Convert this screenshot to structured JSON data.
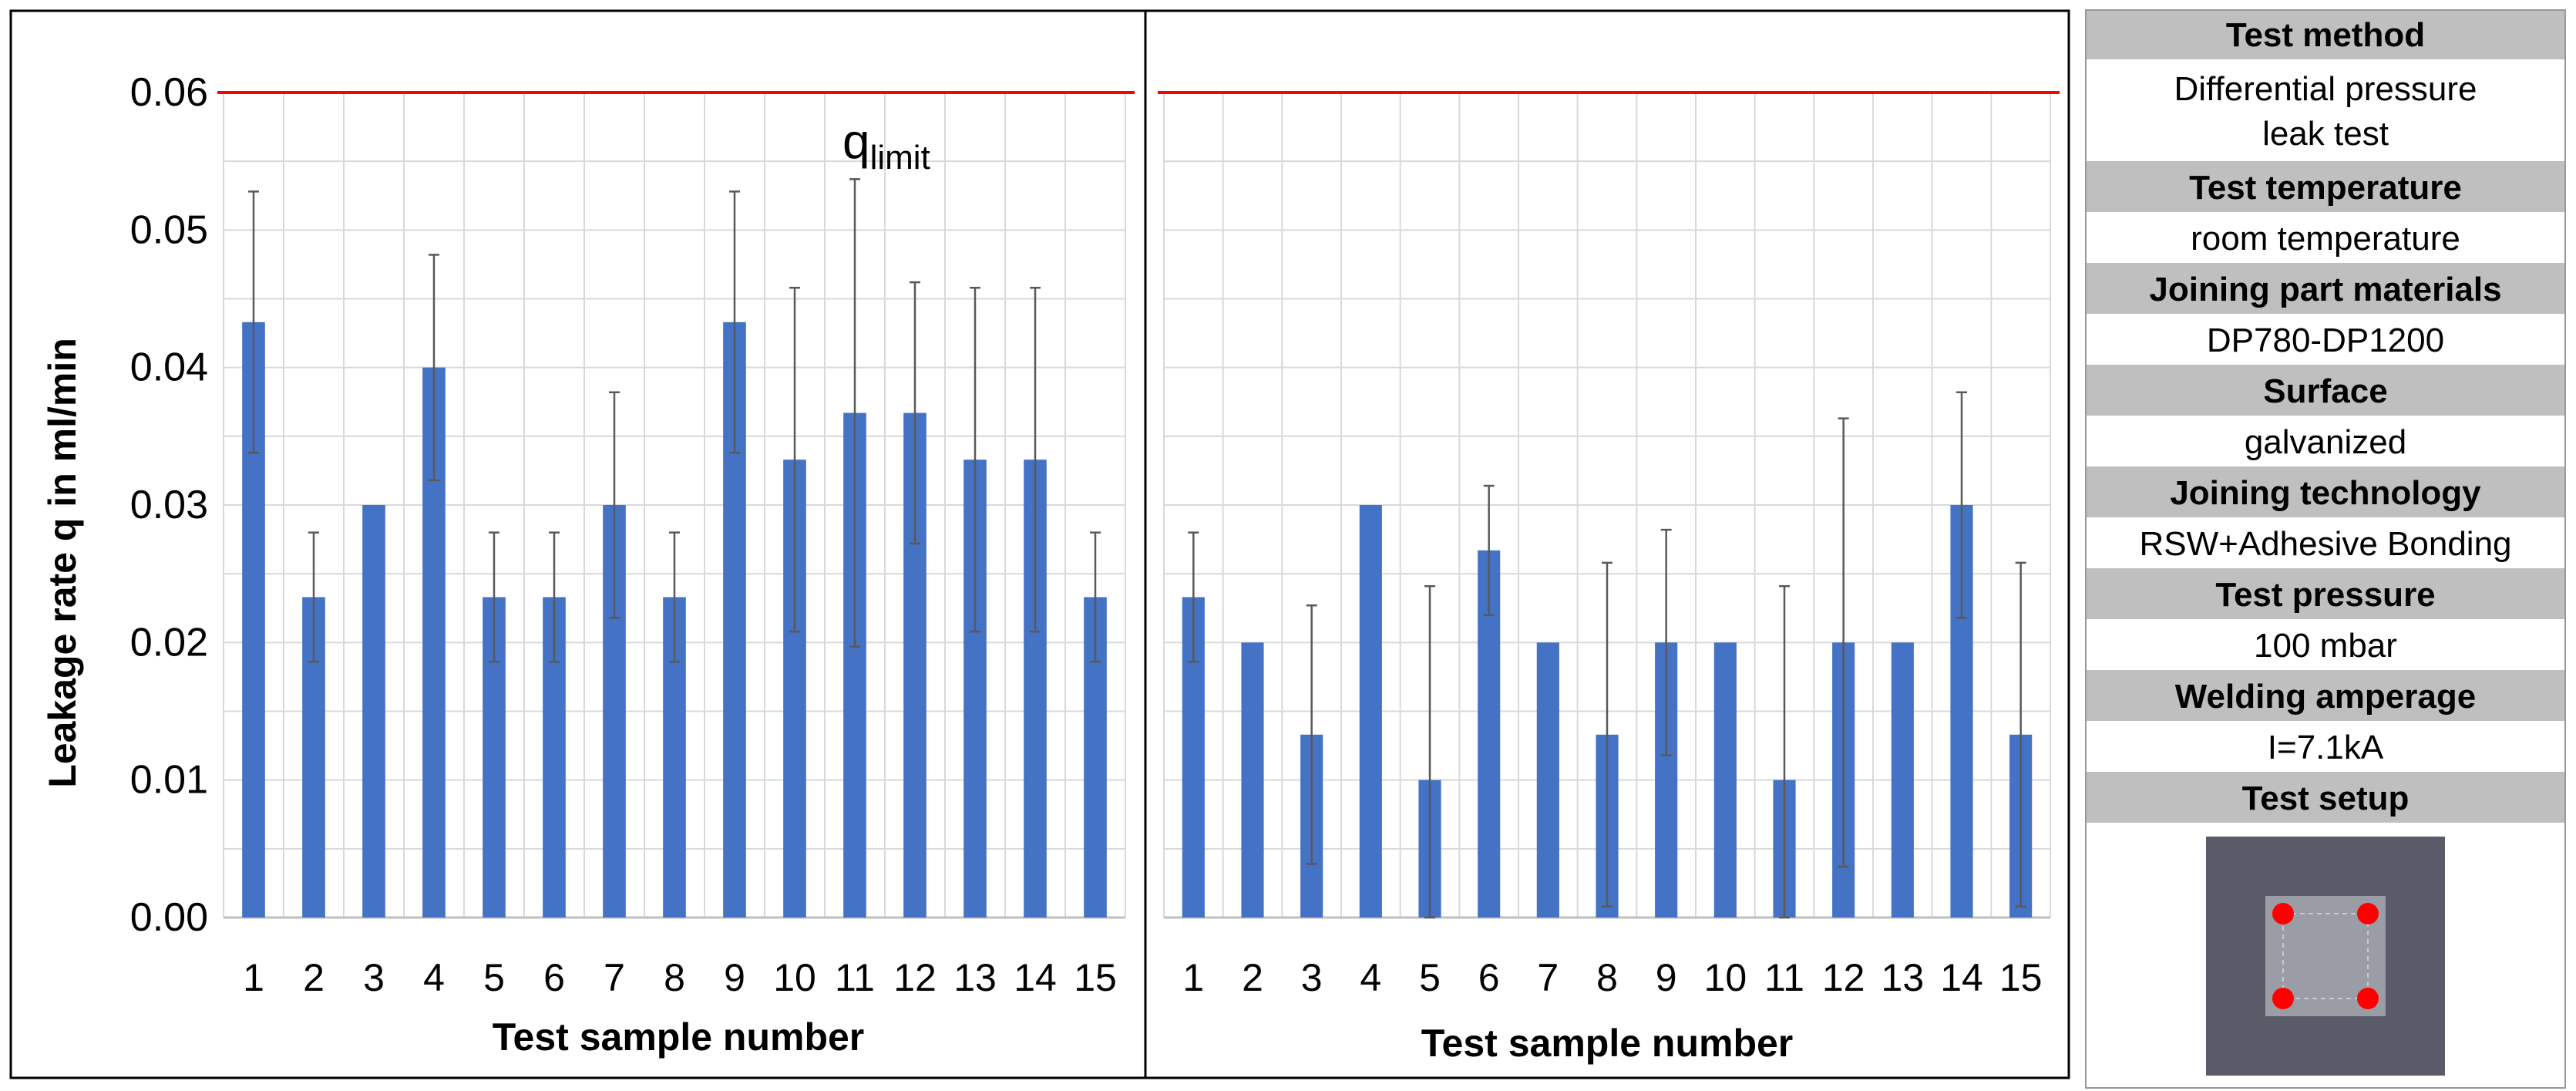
{
  "chart_data": [
    {
      "type": "bar",
      "categories": [
        "1",
        "2",
        "3",
        "4",
        "5",
        "6",
        "7",
        "8",
        "9",
        "10",
        "11",
        "12",
        "13",
        "14",
        "15"
      ],
      "values": [
        0.0433,
        0.0233,
        0.03,
        0.04,
        0.0233,
        0.0233,
        0.03,
        0.0233,
        0.0433,
        0.0333,
        0.0367,
        0.0367,
        0.0333,
        0.0333,
        0.0233
      ],
      "errors": [
        0.0095,
        0.0047,
        0.0,
        0.0082,
        0.0047,
        0.0047,
        0.0082,
        0.0047,
        0.0095,
        0.0125,
        0.017,
        0.0095,
        0.0125,
        0.0125,
        0.0047
      ],
      "ylabel": "Leakage rate q in ml/min",
      "xlabel": "Test sample number",
      "ylim": [
        0,
        0.06
      ],
      "yticks": [
        "0.00",
        "0.01",
        "0.02",
        "0.03",
        "0.04",
        "0.05",
        "0.06"
      ],
      "limit_line": {
        "value": 0.06,
        "label_main": "q",
        "label_sub": "limit",
        "color": "#ff0000"
      },
      "bar_color": "#4472c4",
      "grid": true
    },
    {
      "type": "bar",
      "categories": [
        "1",
        "2",
        "3",
        "4",
        "5",
        "6",
        "7",
        "8",
        "9",
        "10",
        "11",
        "12",
        "13",
        "14",
        "15"
      ],
      "values": [
        0.0233,
        0.02,
        0.0133,
        0.03,
        0.01,
        0.0267,
        0.02,
        0.0133,
        0.02,
        0.02,
        0.01,
        0.02,
        0.02,
        0.03,
        0.0133
      ],
      "errors": [
        0.0047,
        0.0,
        0.0094,
        0.0,
        0.0141,
        0.0047,
        0.0,
        0.0125,
        0.0082,
        0.0,
        0.0141,
        0.0163,
        0.0,
        0.0082,
        0.0125
      ],
      "xlabel": "Test sample number",
      "ylim": [
        0,
        0.06
      ],
      "limit_line": {
        "value": 0.06,
        "color": "#ff0000"
      },
      "bar_color": "#4472c4",
      "grid": true
    }
  ],
  "info_table": [
    {
      "header": "Test method",
      "value_lines": [
        "Differential pressure",
        "leak test"
      ]
    },
    {
      "header": "Test temperature",
      "value_lines": [
        "room temperature"
      ]
    },
    {
      "header": "Joining part materials",
      "value_lines": [
        "DP780-DP1200"
      ]
    },
    {
      "header": "Surface",
      "value_lines": [
        "galvanized"
      ]
    },
    {
      "header": "Joining technology",
      "value_lines": [
        "RSW+Adhesive Bonding"
      ]
    },
    {
      "header": "Test pressure",
      "value_lines": [
        "100 mbar"
      ]
    },
    {
      "header": "Welding amperage",
      "value_lines": [
        "I=7.1kA"
      ]
    },
    {
      "header": "Test setup",
      "value_lines": []
    }
  ],
  "setup_colors": {
    "outer": "#595b68",
    "inner": "#9a9ca6",
    "dots": "#ff0000"
  }
}
